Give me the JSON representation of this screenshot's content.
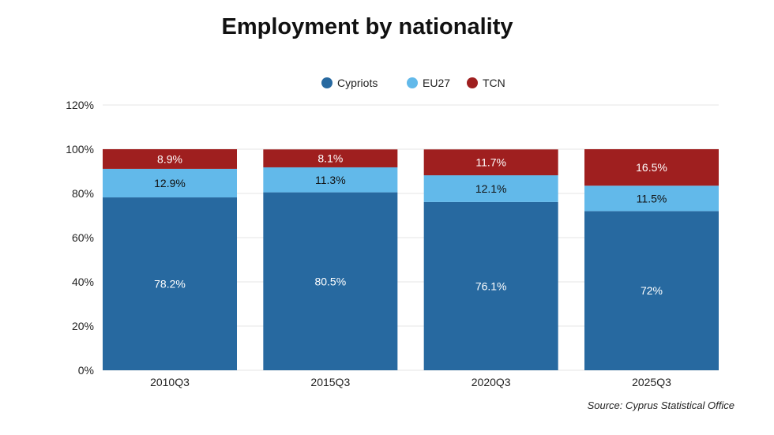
{
  "chart_data": {
    "type": "bar",
    "stacked": true,
    "title": "Employment by nationality",
    "categories": [
      "2010Q3",
      "2015Q3",
      "2020Q3",
      "2025Q3"
    ],
    "series": [
      {
        "name": "Cypriots",
        "values": [
          78.2,
          80.5,
          76.1,
          72
        ],
        "labels": [
          "78.2%",
          "80.5%",
          "76.1%",
          "72%"
        ],
        "color": "#2769a0"
      },
      {
        "name": "EU27",
        "values": [
          12.9,
          11.3,
          12.1,
          11.5
        ],
        "labels": [
          "12.9%",
          "11.3%",
          "12.1%",
          "11.5%"
        ],
        "color": "#62b9ea"
      },
      {
        "name": "TCN",
        "values": [
          8.9,
          8.1,
          11.7,
          16.5
        ],
        "labels": [
          "8.9%",
          "8.1%",
          "11.7%",
          "16.5%"
        ],
        "color": "#9f1f1f"
      }
    ],
    "ylim": [
      0,
      120
    ],
    "yticks": [
      0,
      20,
      40,
      60,
      80,
      100,
      120
    ],
    "ytick_labels": [
      "0%",
      "20%",
      "40%",
      "60%",
      "80%",
      "100%",
      "120%"
    ],
    "grid": true,
    "legend_position": "top-center",
    "xlabel": "",
    "ylabel": ""
  },
  "source": "Source: Cyprus Statistical Office"
}
